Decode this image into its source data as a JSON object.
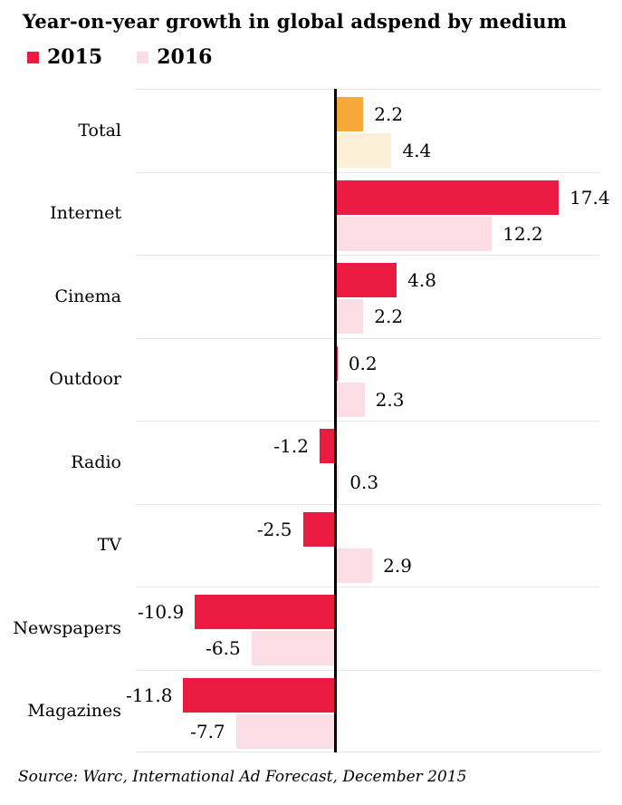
{
  "chart": {
    "title": "Year-on-year growth in global adspend by medium",
    "legend": [
      {
        "label": "2015",
        "color": "#EB1A40"
      },
      {
        "label": "2016",
        "color": "#FBDEE5"
      }
    ],
    "source": "Source: Warc, International Ad Forecast, December 2015"
  },
  "chart_data": {
    "type": "bar",
    "orientation": "horizontal",
    "title": "Year-on-year growth in global adspend by medium",
    "categories": [
      "Total",
      "Internet",
      "Cinema",
      "Outdoor",
      "Radio",
      "TV",
      "Newspapers",
      "Magazines"
    ],
    "series": [
      {
        "name": "2015",
        "color": "#EB1A40",
        "values": [
          2.2,
          17.4,
          4.8,
          0.2,
          -1.2,
          -2.5,
          -10.9,
          -11.8
        ]
      },
      {
        "name": "2016",
        "color": "#FBDEE5",
        "values": [
          4.4,
          12.2,
          2.2,
          2.3,
          0.3,
          2.9,
          -6.5,
          -7.7
        ]
      }
    ],
    "highlight_category": "Total",
    "highlight_colors": {
      "2015": "#F6A838",
      "2016": "#FCEFD8"
    },
    "value_labels": "one-decimal, outside bar end",
    "xlim": [
      -15.5,
      20.6
    ],
    "grid": "horizontal band separators only",
    "gridline_color": "#e6e8e9",
    "axis_line": "vertical black line at zero",
    "legend_position": "top-left",
    "source": "Source: Warc, International Ad Forecast, December 2015"
  }
}
